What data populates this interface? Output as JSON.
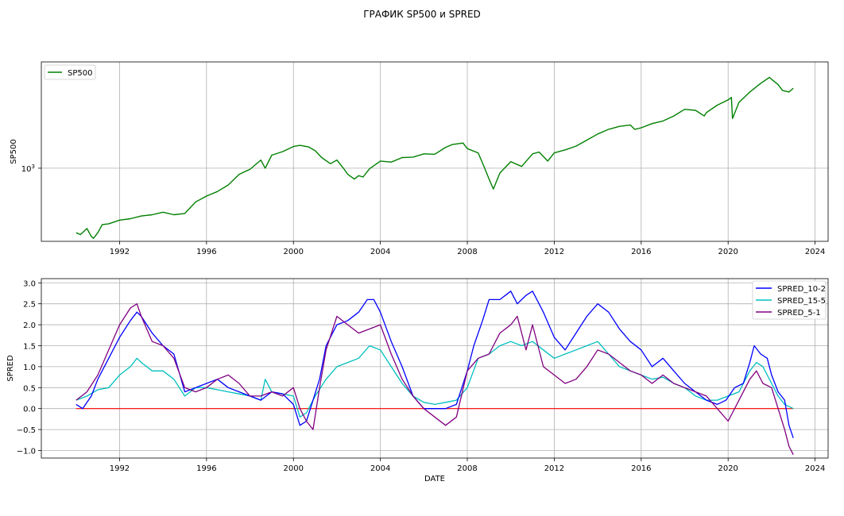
{
  "chart_data": {
    "title": "ГРАФИК SP500 и SPRED",
    "x_tick_labels": [
      "1992",
      "1996",
      "2000",
      "2004",
      "2008",
      "2012",
      "2016",
      "2020",
      "2024"
    ],
    "x_ticks": [
      1992,
      1996,
      2000,
      2004,
      2008,
      2012,
      2016,
      2020,
      2024
    ],
    "panels": [
      {
        "type": "line",
        "ylabel": "SP500",
        "yscale": "log",
        "ylim": [
          285,
          6200
        ],
        "xlim": [
          1988.4,
          2024.6
        ],
        "y_tick_label": "10^3",
        "y_tick_value": 1000,
        "grid": true,
        "legend": "top-left",
        "series": [
          {
            "name": "SP500",
            "color": "#008000",
            "x": [
              1990.0,
              1990.2,
              1990.5,
              1990.7,
              1990.8,
              1991.0,
              1991.2,
              1991.5,
              1992.0,
              1992.5,
              1993.0,
              1993.5,
              1994.0,
              1994.5,
              1995.0,
              1995.5,
              1996.0,
              1996.5,
              1997.0,
              1997.5,
              1997.8,
              1998.0,
              1998.5,
              1998.7,
              1999.0,
              1999.5,
              2000.0,
              2000.3,
              2000.7,
              2001.0,
              2001.3,
              2001.7,
              2002.0,
              2002.3,
              2002.5,
              2002.8,
              2003.0,
              2003.2,
              2003.5,
              2004.0,
              2004.5,
              2005.0,
              2005.5,
              2006.0,
              2006.5,
              2007.0,
              2007.3,
              2007.8,
              2008.0,
              2008.5,
              2008.8,
              2009.0,
              2009.2,
              2009.5,
              2010.0,
              2010.5,
              2011.0,
              2011.3,
              2011.7,
              2012.0,
              2012.5,
              2013.0,
              2013.5,
              2014.0,
              2014.5,
              2015.0,
              2015.5,
              2015.7,
              2016.0,
              2016.5,
              2017.0,
              2017.5,
              2018.0,
              2018.5,
              2018.9,
              2019.0,
              2019.5,
              2020.0,
              2020.15,
              2020.2,
              2020.5,
              2021.0,
              2021.5,
              2021.9,
              2022.0,
              2022.3,
              2022.5,
              2022.8,
              2023.0
            ],
            "y": [
              330,
              320,
              355,
              310,
              300,
              330,
              380,
              385,
              410,
              420,
              440,
              450,
              470,
              450,
              460,
              560,
              620,
              670,
              750,
              900,
              950,
              980,
              1150,
              1000,
              1250,
              1330,
              1450,
              1480,
              1440,
              1350,
              1200,
              1080,
              1150,
              1000,
              900,
              830,
              880,
              860,
              990,
              1130,
              1110,
              1200,
              1210,
              1280,
              1270,
              1430,
              1500,
              1540,
              1400,
              1300,
              1000,
              830,
              700,
              920,
              1120,
              1030,
              1280,
              1320,
              1130,
              1300,
              1370,
              1460,
              1620,
              1800,
              1950,
              2050,
              2100,
              1950,
              2000,
              2150,
              2250,
              2450,
              2750,
              2700,
              2450,
              2600,
              2950,
              3230,
              3370,
              2350,
              3100,
              3700,
              4300,
              4750,
              4600,
              4200,
              3800,
              3700,
              3950
            ]
          }
        ]
      },
      {
        "type": "line",
        "ylabel": "SPRED",
        "xlabel": "DATE",
        "ylim": [
          -1.18,
          3.1
        ],
        "xlim": [
          1988.4,
          2024.6
        ],
        "y_ticks": [
          -1.0,
          -0.5,
          0.0,
          0.5,
          1.0,
          1.5,
          2.0,
          2.5,
          3.0
        ],
        "y_tick_labels": [
          "−1.0",
          "−0.5",
          "0.0",
          "0.5",
          "1.0",
          "1.5",
          "2.0",
          "2.5",
          "3.0"
        ],
        "grid": true,
        "legend": "top-right",
        "zero_line_color": "#ff0000",
        "series": [
          {
            "name": "SPRED_10-2",
            "color": "#0000ff",
            "x": [
              1990.0,
              1990.3,
              1990.7,
              1991.0,
              1991.5,
              1992.0,
              1992.5,
              1992.8,
              1993.0,
              1993.5,
              1994.0,
              1994.5,
              1995.0,
              1995.5,
              1996.0,
              1996.5,
              1997.0,
              1997.5,
              1998.0,
              1998.5,
              1999.0,
              1999.5,
              2000.0,
              2000.3,
              2000.6,
              2000.9,
              2001.2,
              2001.5,
              2002.0,
              2002.5,
              2003.0,
              2003.4,
              2003.7,
              2004.0,
              2004.5,
              2005.0,
              2005.5,
              2006.0,
              2006.5,
              2007.0,
              2007.5,
              2008.0,
              2008.3,
              2008.7,
              2009.0,
              2009.5,
              2010.0,
              2010.3,
              2010.7,
              2011.0,
              2011.5,
              2012.0,
              2012.5,
              2013.0,
              2013.5,
              2014.0,
              2014.5,
              2015.0,
              2015.5,
              2016.0,
              2016.5,
              2017.0,
              2017.5,
              2018.0,
              2018.5,
              2019.0,
              2019.5,
              2019.9,
              2020.3,
              2020.7,
              2021.0,
              2021.2,
              2021.5,
              2021.8,
              2022.0,
              2022.3,
              2022.6,
              2022.8,
              2023.0
            ],
            "y": [
              0.1,
              0.0,
              0.3,
              0.7,
              1.2,
              1.7,
              2.1,
              2.3,
              2.2,
              1.8,
              1.5,
              1.3,
              0.4,
              0.5,
              0.6,
              0.7,
              0.5,
              0.4,
              0.3,
              0.2,
              0.4,
              0.35,
              0.1,
              -0.4,
              -0.3,
              0.2,
              0.7,
              1.5,
              2.0,
              2.1,
              2.3,
              2.6,
              2.6,
              2.3,
              1.6,
              1.0,
              0.3,
              0.0,
              0.0,
              0.0,
              0.1,
              0.9,
              1.5,
              2.1,
              2.6,
              2.6,
              2.8,
              2.5,
              2.7,
              2.8,
              2.3,
              1.7,
              1.4,
              1.8,
              2.2,
              2.5,
              2.3,
              1.9,
              1.6,
              1.4,
              1.0,
              1.2,
              0.9,
              0.6,
              0.4,
              0.2,
              0.1,
              0.2,
              0.5,
              0.6,
              1.1,
              1.5,
              1.3,
              1.2,
              0.8,
              0.4,
              0.2,
              -0.4,
              -0.7
            ]
          },
          {
            "name": "SPRED_15-5",
            "color": "#00bfbf",
            "x": [
              1990.0,
              1990.5,
              1991.0,
              1991.5,
              1992.0,
              1992.5,
              1992.8,
              1993.0,
              1993.5,
              1994.0,
              1994.5,
              1995.0,
              1995.5,
              1996.0,
              1996.5,
              1997.0,
              1997.5,
              1998.0,
              1998.5,
              1998.7,
              1999.0,
              1999.5,
              2000.0,
              2000.3,
              2000.6,
              2001.0,
              2001.5,
              2002.0,
              2002.5,
              2003.0,
              2003.5,
              2004.0,
              2004.5,
              2005.0,
              2005.5,
              2006.0,
              2006.5,
              2007.0,
              2007.5,
              2008.0,
              2008.5,
              2009.0,
              2009.5,
              2010.0,
              2010.5,
              2011.0,
              2011.5,
              2012.0,
              2012.5,
              2013.0,
              2013.5,
              2014.0,
              2014.5,
              2015.0,
              2015.5,
              2016.0,
              2016.5,
              2017.0,
              2017.5,
              2018.0,
              2018.5,
              2019.0,
              2019.5,
              2020.0,
              2020.5,
              2021.0,
              2021.3,
              2021.6,
              2022.0,
              2022.3,
              2022.6,
              2023.0
            ],
            "y": [
              0.2,
              0.3,
              0.45,
              0.5,
              0.8,
              1.0,
              1.2,
              1.1,
              0.9,
              0.9,
              0.7,
              0.3,
              0.5,
              0.5,
              0.45,
              0.4,
              0.35,
              0.3,
              0.2,
              0.7,
              0.4,
              0.35,
              0.3,
              -0.2,
              -0.1,
              0.3,
              0.7,
              1.0,
              1.1,
              1.2,
              1.5,
              1.4,
              1.0,
              0.6,
              0.3,
              0.15,
              0.1,
              0.15,
              0.2,
              0.5,
              1.2,
              1.3,
              1.5,
              1.6,
              1.5,
              1.6,
              1.4,
              1.2,
              1.3,
              1.4,
              1.5,
              1.6,
              1.3,
              1.0,
              0.9,
              0.8,
              0.7,
              0.75,
              0.6,
              0.5,
              0.3,
              0.2,
              0.2,
              0.3,
              0.4,
              0.9,
              1.1,
              1.0,
              0.6,
              0.3,
              0.1,
              0.0
            ]
          },
          {
            "name": "SPRED_5-1",
            "color": "#800080",
            "x": [
              1990.0,
              1990.5,
              1991.0,
              1991.5,
              1992.0,
              1992.5,
              1992.8,
              1993.0,
              1993.5,
              1994.0,
              1994.5,
              1995.0,
              1995.5,
              1996.0,
              1996.5,
              1997.0,
              1997.5,
              1998.0,
              1998.5,
              1999.0,
              1999.5,
              2000.0,
              2000.3,
              2000.6,
              2000.9,
              2001.2,
              2001.5,
              2002.0,
              2002.5,
              2003.0,
              2003.5,
              2004.0,
              2004.5,
              2005.0,
              2005.5,
              2006.0,
              2006.5,
              2007.0,
              2007.5,
              2008.0,
              2008.5,
              2009.0,
              2009.5,
              2010.0,
              2010.3,
              2010.7,
              2011.0,
              2011.5,
              2012.0,
              2012.5,
              2013.0,
              2013.5,
              2014.0,
              2014.5,
              2015.0,
              2015.5,
              2016.0,
              2016.5,
              2017.0,
              2017.5,
              2018.0,
              2018.5,
              2019.0,
              2019.5,
              2020.0,
              2020.5,
              2021.0,
              2021.3,
              2021.6,
              2022.0,
              2022.3,
              2022.6,
              2022.8,
              2023.0
            ],
            "y": [
              0.2,
              0.4,
              0.8,
              1.4,
              2.0,
              2.4,
              2.5,
              2.2,
              1.6,
              1.5,
              1.2,
              0.5,
              0.4,
              0.5,
              0.7,
              0.8,
              0.6,
              0.3,
              0.3,
              0.4,
              0.3,
              0.5,
              0.0,
              -0.3,
              -0.5,
              0.5,
              1.4,
              2.2,
              2.0,
              1.8,
              1.9,
              2.0,
              1.3,
              0.7,
              0.3,
              0.0,
              -0.2,
              -0.4,
              -0.2,
              0.9,
              1.2,
              1.3,
              1.8,
              2.0,
              2.2,
              1.4,
              2.0,
              1.0,
              0.8,
              0.6,
              0.7,
              1.0,
              1.4,
              1.3,
              1.1,
              0.9,
              0.8,
              0.6,
              0.8,
              0.6,
              0.5,
              0.4,
              0.3,
              0.0,
              -0.3,
              0.2,
              0.7,
              0.9,
              0.6,
              0.5,
              0.0,
              -0.5,
              -0.9,
              -1.1
            ]
          }
        ]
      }
    ]
  }
}
